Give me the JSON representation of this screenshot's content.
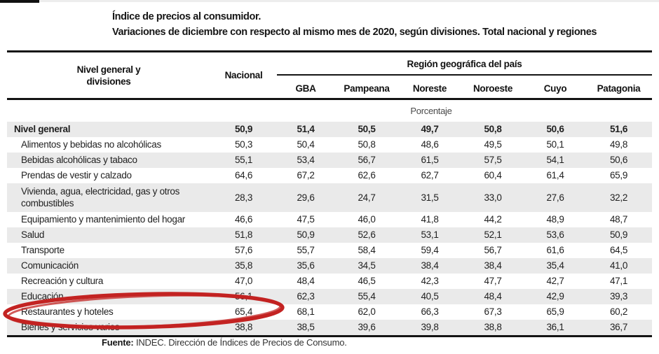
{
  "page": {
    "title_line1": "Índice de precios al consumidor.",
    "title_line2": "Variaciones de diciembre con respecto al mismo mes de 2020, según divisiones. Total nacional y regiones"
  },
  "table": {
    "col1_header": "Nivel general y divisiones",
    "nacional_header": "Nacional",
    "region_group_header": "Región geográfica del país",
    "region_headers": [
      "GBA",
      "Pampeana",
      "Noreste",
      "Noroeste",
      "Cuyo",
      "Patagonia"
    ],
    "unit_label": "Porcentaje",
    "rows": [
      {
        "label": "Nivel general",
        "bold": true,
        "values": [
          "50,9",
          "51,4",
          "50,5",
          "49,7",
          "50,8",
          "50,6",
          "51,6"
        ]
      },
      {
        "label": "Alimentos y bebidas no alcohólicas",
        "values": [
          "50,3",
          "50,4",
          "50,8",
          "48,6",
          "49,5",
          "50,1",
          "49,8"
        ]
      },
      {
        "label": "Bebidas alcohólicas y tabaco",
        "values": [
          "55,1",
          "53,4",
          "56,7",
          "61,5",
          "57,5",
          "54,1",
          "50,6"
        ]
      },
      {
        "label": "Prendas de vestir y calzado",
        "values": [
          "64,6",
          "67,2",
          "62,6",
          "62,7",
          "60,4",
          "61,4",
          "65,9"
        ]
      },
      {
        "label": "Vivienda, agua, electricidad, gas y otros combustibles",
        "two_line": true,
        "values": [
          "28,3",
          "29,6",
          "24,7",
          "31,5",
          "33,0",
          "27,6",
          "32,2"
        ]
      },
      {
        "label": "Equipamiento y mantenimiento del hogar",
        "values": [
          "46,6",
          "47,5",
          "46,0",
          "41,8",
          "44,2",
          "48,9",
          "48,7"
        ]
      },
      {
        "label": "Salud",
        "values": [
          "51,8",
          "50,9",
          "52,6",
          "53,1",
          "52,1",
          "53,6",
          "50,9"
        ]
      },
      {
        "label": "Transporte",
        "values": [
          "57,6",
          "55,7",
          "58,4",
          "59,4",
          "56,7",
          "61,6",
          "64,5"
        ]
      },
      {
        "label": "Comunicación",
        "values": [
          "35,8",
          "35,6",
          "34,5",
          "38,4",
          "38,4",
          "35,4",
          "41,0"
        ]
      },
      {
        "label": "Recreación y cultura",
        "values": [
          "47,0",
          "48,4",
          "46,5",
          "42,3",
          "47,7",
          "42,7",
          "47,1"
        ]
      },
      {
        "label": "Educación",
        "values": [
          "56,1",
          "62,3",
          "55,4",
          "40,5",
          "48,4",
          "42,9",
          "39,3"
        ]
      },
      {
        "label": "Restaurantes y hoteles",
        "highlighted": true,
        "values": [
          "65,4",
          "68,1",
          "62,0",
          "66,3",
          "67,3",
          "65,9",
          "60,2"
        ]
      },
      {
        "label": "Bienes y servicios varios",
        "values": [
          "38,8",
          "38,5",
          "39,6",
          "39,8",
          "38,8",
          "36,1",
          "36,7"
        ]
      }
    ]
  },
  "annotation": {
    "shape": "hand-drawn-ellipse",
    "highlights": "Restaurantes y hoteles — 65,4",
    "color": "#c32322"
  },
  "source": {
    "label": "Fuente:",
    "text": " INDEC. Dirección de Índices de Precios de Consumo."
  },
  "colors": {
    "stripe_gray": "#eaeaea",
    "rule_black": "#141414",
    "text": "#1f1f1f",
    "annotation_red": "#c32322"
  }
}
